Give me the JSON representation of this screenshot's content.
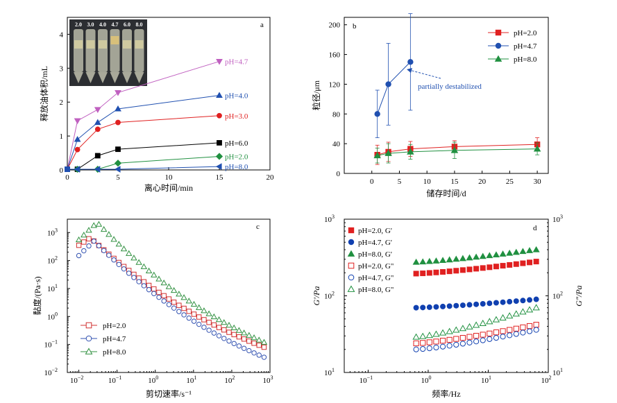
{
  "chart_data": [
    {
      "panel": "a",
      "type": "line",
      "xlabel": "离心时间/min",
      "ylabel": "释放油体积/mL",
      "xlim": [
        0,
        20
      ],
      "ylim": [
        0,
        4.5
      ],
      "xticks": [
        "0",
        "5",
        "10",
        "15",
        "20"
      ],
      "yticks": [
        "0",
        "1",
        "2",
        "3",
        "4"
      ],
      "inset_labels": [
        "2.0",
        "3.0",
        "4.0",
        "4.7",
        "6.0",
        "8.0"
      ],
      "series": [
        {
          "name": "pH=4.7",
          "color": "#c060c0",
          "marker": "triangle-down",
          "x": [
            0,
            1,
            3,
            5,
            15
          ],
          "y": [
            0.02,
            1.45,
            1.78,
            2.28,
            3.2
          ]
        },
        {
          "name": "pH=4.0",
          "color": "#2050b0",
          "marker": "triangle-up",
          "x": [
            0,
            1,
            3,
            5,
            15
          ],
          "y": [
            0.02,
            0.9,
            1.4,
            1.8,
            2.2
          ]
        },
        {
          "name": "pH=3.0",
          "color": "#e02020",
          "marker": "circle",
          "x": [
            0,
            1,
            3,
            5,
            15
          ],
          "y": [
            0.02,
            0.6,
            1.2,
            1.4,
            1.6
          ]
        },
        {
          "name": "pH=6.0",
          "color": "#000000",
          "marker": "square",
          "x": [
            0,
            1,
            3,
            5,
            15
          ],
          "y": [
            0.02,
            0.02,
            0.42,
            0.61,
            0.8
          ]
        },
        {
          "name": "pH=2.0",
          "color": "#209040",
          "marker": "diamond",
          "x": [
            0,
            1,
            3,
            5,
            15
          ],
          "y": [
            0.02,
            0.02,
            0.02,
            0.2,
            0.4
          ]
        },
        {
          "name": "pH=8.0",
          "color": "#2050b0",
          "marker": "triangle-left",
          "x": [
            0,
            1,
            3,
            5,
            15
          ],
          "y": [
            0.02,
            0.02,
            0.02,
            0.02,
            0.1
          ]
        }
      ]
    },
    {
      "panel": "b",
      "type": "line",
      "xlabel": "储存时间/d",
      "ylabel": "粒径/μm",
      "xlim": [
        -5,
        32
      ],
      "ylim": [
        0,
        210
      ],
      "xticks": [
        "0",
        "5",
        "10",
        "15",
        "20",
        "25",
        "30"
      ],
      "yticks": [
        "0",
        "40",
        "80",
        "120",
        "160",
        "200"
      ],
      "annotation": "partially destabilized",
      "series": [
        {
          "name": "pH=2.0",
          "color": "#e02020",
          "marker": "square",
          "x": [
            1,
            3,
            7,
            15,
            30
          ],
          "y": [
            25,
            29,
            33,
            36,
            39
          ],
          "err": [
            13,
            13,
            10,
            8,
            9
          ]
        },
        {
          "name": "pH=4.7",
          "color": "#2050b0",
          "marker": "circle",
          "x": [
            1,
            3,
            7
          ],
          "y": [
            80,
            120,
            150
          ],
          "err": [
            32,
            55,
            65
          ]
        },
        {
          "name": "pH=8.0",
          "color": "#209040",
          "marker": "triangle-up",
          "x": [
            1,
            3,
            7,
            15,
            30
          ],
          "y": [
            24,
            27,
            29,
            31,
            33
          ],
          "err": [
            10,
            13,
            10,
            11,
            8
          ]
        }
      ]
    },
    {
      "panel": "c",
      "type": "scatter",
      "xlabel": "剪切速率/s⁻¹",
      "ylabel": "黏度/(Pa·s)",
      "xscale": "log",
      "yscale": "log",
      "xlim": [
        0.005,
        1000
      ],
      "ylim": [
        0.01,
        3000
      ],
      "xtick_exps": [
        -2,
        -1,
        0,
        1,
        2,
        3
      ],
      "ytick_exps": [
        -2,
        -1,
        0,
        1,
        2,
        3
      ],
      "series": [
        {
          "name": "pH=2.0",
          "color": "#d03030",
          "marker": "square-open",
          "peak_x": 0.02,
          "peak_y": 650,
          "end_y": 0.08,
          "start_y": 350,
          "start_x": 0.01
        },
        {
          "name": "pH=4.7",
          "color": "#3050b0",
          "marker": "circle-open",
          "peak_x": 0.025,
          "peak_y": 500,
          "end_y": 0.035,
          "start_y": 150,
          "start_x": 0.01
        },
        {
          "name": "pH=8.0",
          "color": "#309040",
          "marker": "triangle-open",
          "peak_x": 0.03,
          "peak_y": 2300,
          "end_y": 0.12,
          "start_y": 550,
          "start_x": 0.01
        }
      ]
    },
    {
      "panel": "d",
      "type": "scatter",
      "xlabel": "频率/Hz",
      "ylabel_left": "G'/Pa",
      "ylabel_right": "G\"/Pa",
      "xscale": "log",
      "yscale": "log",
      "xlim": [
        0.04,
        100
      ],
      "ylim": [
        10,
        1000
      ],
      "xtick_exps": [
        -1,
        0,
        1,
        2
      ],
      "ytick_exps": [
        1,
        2,
        3
      ],
      "series": [
        {
          "name": "pH=2.0, G'",
          "color": "#e02020",
          "marker": "square",
          "y0": 195,
          "y1": 280
        },
        {
          "name": "pH=4.7, G'",
          "color": "#1040b0",
          "marker": "circle",
          "y0": 70,
          "y1": 90
        },
        {
          "name": "pH=8.0, G'",
          "color": "#209040",
          "marker": "triangle-up",
          "y0": 275,
          "y1": 400
        },
        {
          "name": "pH=2.0, G\"",
          "color": "#e02020",
          "marker": "square-open",
          "y0": 24,
          "y1": 42
        },
        {
          "name": "pH=4.7, G\"",
          "color": "#1040b0",
          "marker": "circle-open",
          "y0": 20,
          "y1": 36
        },
        {
          "name": "pH=8.0, G\"",
          "color": "#209040",
          "marker": "triangle-open",
          "y0": 29,
          "y1": 70
        }
      ]
    }
  ]
}
